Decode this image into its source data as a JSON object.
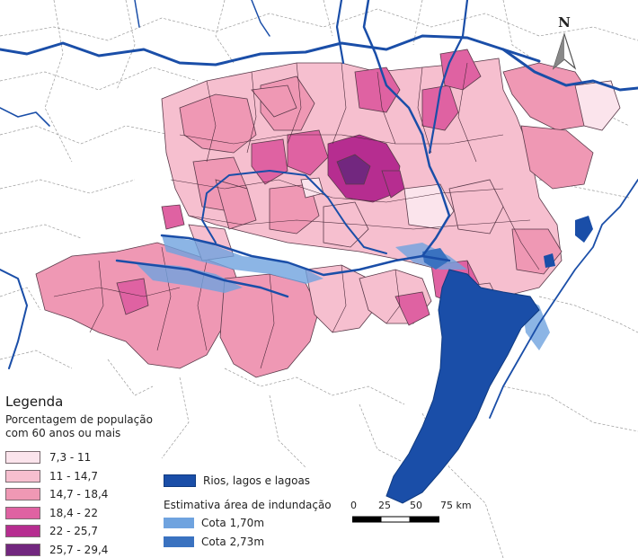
{
  "north_label": "N",
  "legend": {
    "title": "Legenda",
    "subtitle": "Porcentagem de população com 60 anos ou mais",
    "classes": [
      {
        "label": "7,3 - 11",
        "color": "#fbe4ec"
      },
      {
        "label": "11 - 14,7",
        "color": "#f6bfcf"
      },
      {
        "label": "14,7 - 18,4",
        "color": "#ef98b4"
      },
      {
        "label": "18,4 - 22",
        "color": "#df62a2"
      },
      {
        "label": "22 - 25,7",
        "color": "#b62d90"
      },
      {
        "label": "25,7 - 29,4",
        "color": "#72277f"
      }
    ],
    "water_label": "Rios, lagos e lagoas",
    "water_color": "#1a4ea8",
    "flood_title": "Estimativa área de indundação",
    "flood": [
      {
        "label": "Cota 1,70m",
        "color": "#6fa3df"
      },
      {
        "label": "Cota 2,73m",
        "color": "#3a72c0"
      }
    ]
  },
  "scale": {
    "ticks": [
      "0",
      "25",
      "50",
      "75 km"
    ]
  }
}
